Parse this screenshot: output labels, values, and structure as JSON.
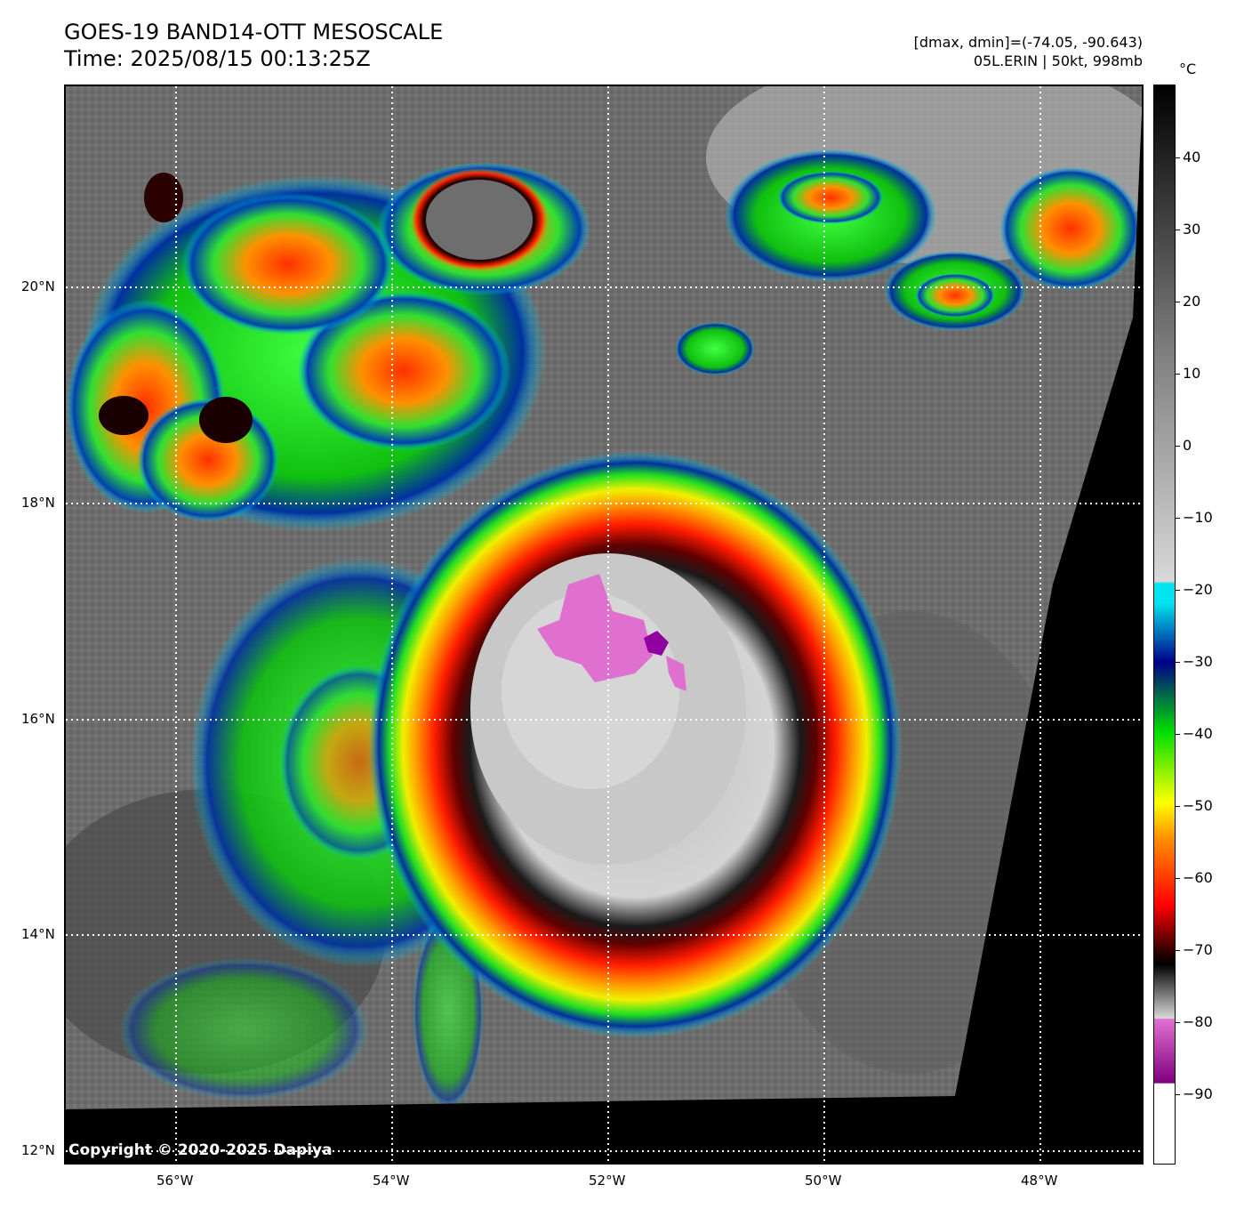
{
  "header": {
    "title_line1": "GOES-19 BAND14-OTT MESOSCALE",
    "title_line2": "Time: 2025/08/15 00:13:25Z",
    "info_line1": "[dmax, dmin]=(-74.05, -90.643)",
    "info_line2": "05L.ERIN | 50kt, 998mb"
  },
  "map": {
    "lat_labels": [
      "20°N",
      "18°N",
      "16°N",
      "14°N",
      "12°N"
    ],
    "lon_labels": [
      "56°W",
      "54°W",
      "52°W",
      "50°W",
      "48°W"
    ],
    "grid": "dotted white",
    "copyright": "Copyright © 2020-2025 Dapiya"
  },
  "colorbar": {
    "unit": "°C",
    "tick_labels": [
      "40",
      "30",
      "20",
      "10",
      "0",
      "−10",
      "−20",
      "−30",
      "−40",
      "−50",
      "−60",
      "−70",
      "−80",
      "−90"
    ],
    "colors": {
      "warm": "#000000",
      "gray_mid": "#808080",
      "gray_light": "#d8d8d8",
      "cyan": "#00e5f0",
      "blue": "#00008b",
      "green": "#00e000",
      "yellow": "#ffff00",
      "orange": "#ff8c00",
      "red": "#ff0000",
      "darkred": "#400000",
      "magenta": "#e070d0",
      "purple": "#800080",
      "white": "#ffffff"
    }
  }
}
